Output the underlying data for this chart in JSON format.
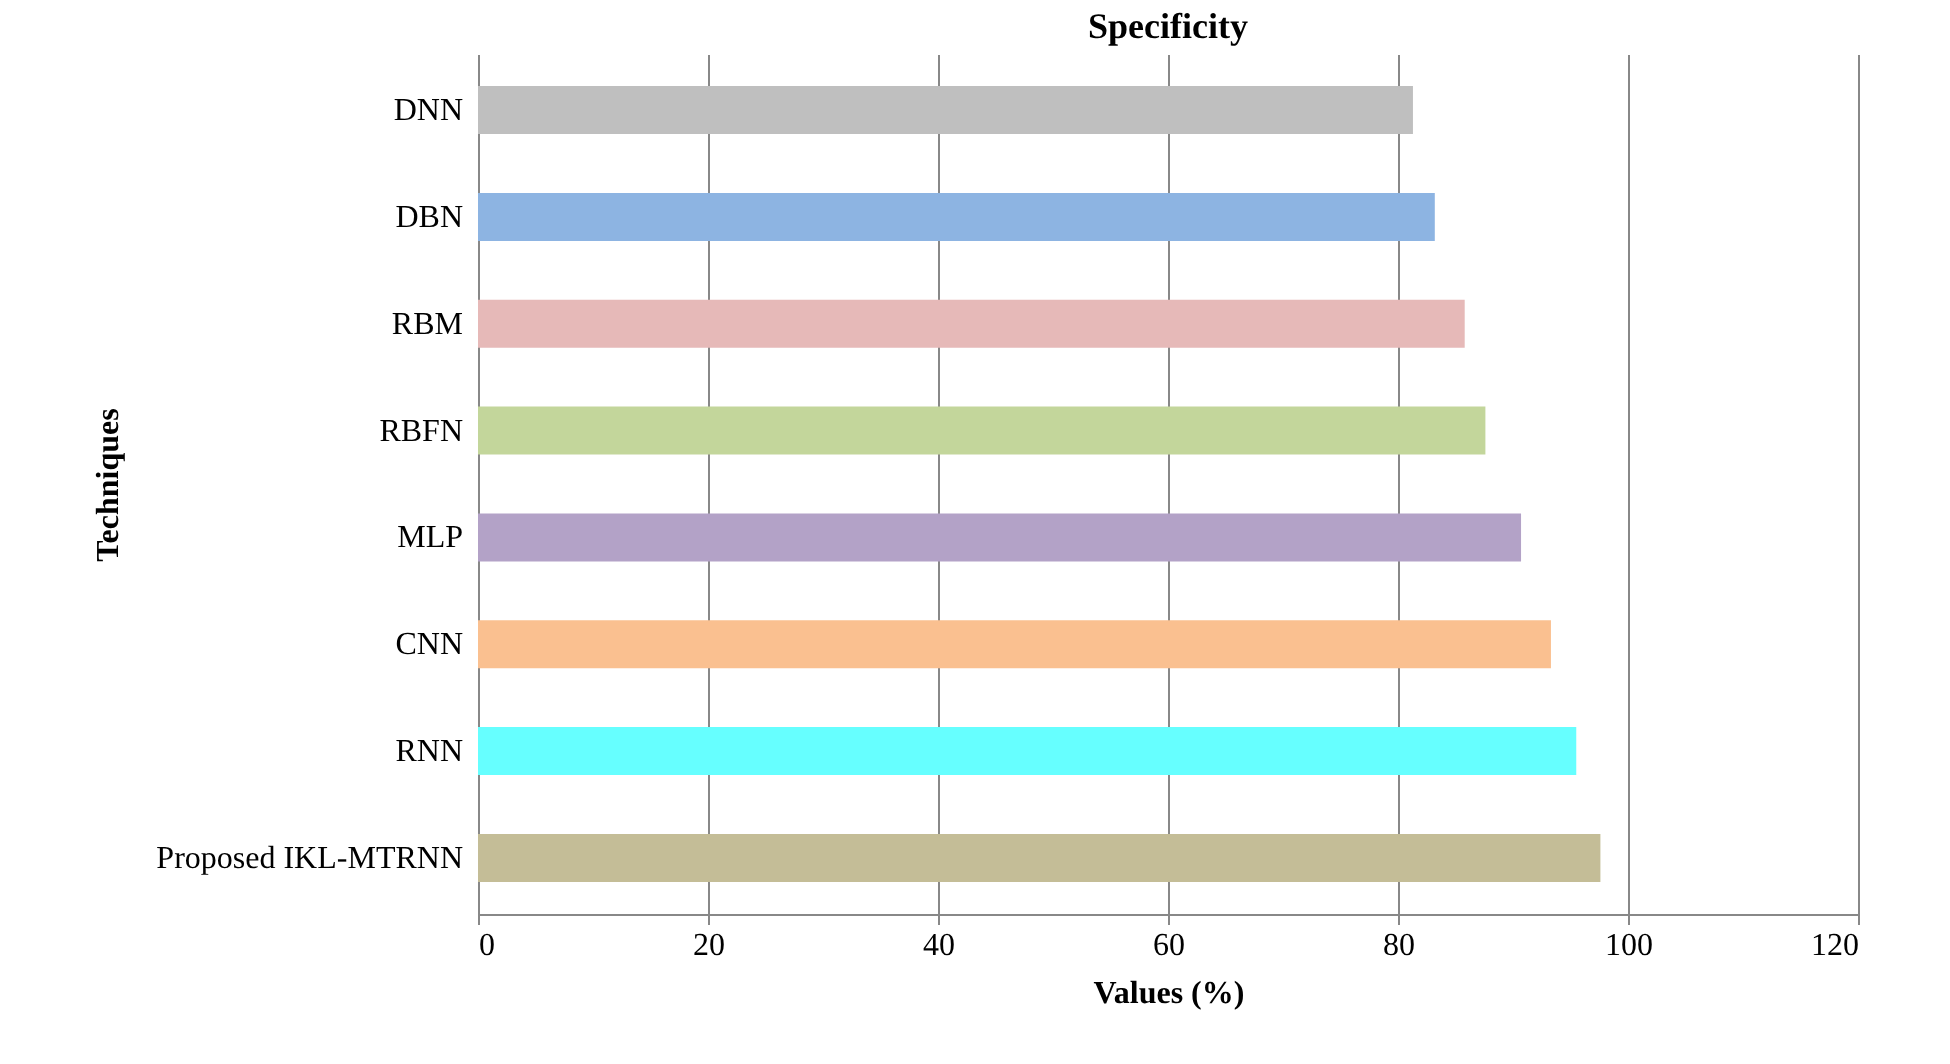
{
  "chart_data": {
    "type": "bar",
    "orientation": "horizontal",
    "title": "Specificity",
    "xlabel": "Values (%)",
    "ylabel": "Techniques",
    "categories": [
      "DNN",
      "DBN",
      "RBM",
      "RBFN",
      "MLP",
      "CNN",
      "RNN",
      "Proposed IKL-MTRNN"
    ],
    "values": [
      81.3,
      83.2,
      85.8,
      87.6,
      90.7,
      93.3,
      95.5,
      97.6
    ],
    "colors": [
      "#bfbfbf",
      "#8db4e2",
      "#e6b9b8",
      "#c3d69b",
      "#b3a2c7",
      "#fac090",
      "#66ffff",
      "#c4bd97"
    ],
    "xlim": [
      0,
      120
    ],
    "xticks": [
      0,
      20,
      40,
      60,
      80,
      100,
      120
    ],
    "grid": "x"
  }
}
